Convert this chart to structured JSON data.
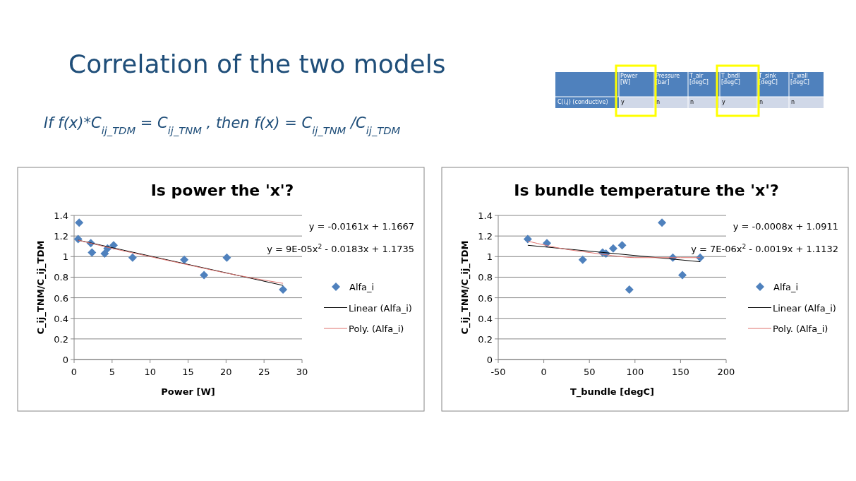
{
  "chart_data": [
    {
      "type": "other",
      "title": "Correlation of the two models",
      "subtitle": "If f(x)*C$_{ij_TDM}$ = C$_{ij_TNM}$ , then f(x) = C$_{ij_TNM}$ /C$_{ij_TDM}$",
      "annotations": [
        "Power [W]",
        "Pressure [bar]",
        "T_air [degC]",
        "T_bndl [degC]",
        "T_sink [degC]",
        "T_wall [degC]",
        "C(i,j) (conductive)",
        "y",
        "n",
        "n",
        "y",
        "n",
        "n"
      ]
    },
    {
      "type": "scatter",
      "title": "Is power the 'x'?",
      "xlabel": "Power [W]",
      "ylabel": "C_ij_TNM/C_ij_TDM",
      "xlim": [
        0,
        30
      ],
      "xticks": [
        0,
        5,
        10,
        15,
        20,
        25,
        30
      ],
      "ylim": [
        0,
        1.4
      ],
      "yticks": [
        0,
        0.2,
        0.4,
        0.6,
        0.8,
        1,
        1.2,
        1.4
      ],
      "grid": "y",
      "legend": "right",
      "annotations": [
        "y = -0.0161x + 1.1667",
        "y = 9E-05x$^{2}$ - 0.0183x + 1.1735"
      ],
      "series": [
        {
          "name": "Alfa_i",
          "type": "scatter",
          "marker": "diamond",
          "color": "#4f81bd",
          "x": [
            0.67,
            0.53,
            2.2,
            2.35,
            4.03,
            4.4,
            5.2,
            7.7,
            14.5,
            17.1,
            20.1,
            27.5
          ],
          "values": [
            1.33,
            1.17,
            1.13,
            1.04,
            1.03,
            1.08,
            1.11,
            0.99,
            0.97,
            0.82,
            0.99,
            0.68
          ]
        },
        {
          "name": "Linear (Alfa_i)",
          "type": "line",
          "marker": "none",
          "color": "#000000",
          "x": [
            0.53,
            27.5
          ],
          "values": [
            1.16,
            0.72
          ]
        },
        {
          "name": "Poly. (Alfa_i)",
          "type": "line",
          "marker": "none",
          "color": "#e0736f",
          "x": [
            0.53,
            5,
            10,
            15,
            20,
            27.5
          ],
          "values": [
            1.16,
            1.08,
            1.0,
            0.92,
            0.84,
            0.74
          ]
        }
      ]
    },
    {
      "type": "scatter",
      "title": "Is bundle temperature the 'x'?",
      "xlabel": "T_bundle [degC]",
      "ylabel": "C_ij_TNM/C_ij_TDM",
      "xlim": [
        -50,
        200
      ],
      "xticks": [
        -50,
        0,
        50,
        100,
        150,
        200
      ],
      "ylim": [
        0,
        1.4
      ],
      "yticks": [
        0,
        0.2,
        0.4,
        0.6,
        0.8,
        1,
        1.2,
        1.4
      ],
      "grid": "y",
      "legend": "right",
      "annotations": [
        "y = -0.0008x + 1.0911",
        "y = 7E-06x$^{2}$ - 0.0019x + 1.1132"
      ],
      "series": [
        {
          "name": "Alfa_i",
          "type": "scatter",
          "marker": "diamond",
          "color": "#4f81bd",
          "x": [
            -17.6,
            3.4,
            42.7,
            64.5,
            68.2,
            76.1,
            85.9,
            93.8,
            129.6,
            141.5,
            152,
            171.5
          ],
          "values": [
            1.17,
            1.13,
            0.97,
            1.04,
            1.03,
            1.08,
            1.11,
            0.68,
            1.33,
            0.99,
            0.82,
            0.99
          ]
        },
        {
          "name": "Linear (Alfa_i)",
          "type": "line",
          "marker": "none",
          "color": "#000000",
          "x": [
            -17.6,
            171.5
          ],
          "values": [
            1.11,
            0.95
          ]
        },
        {
          "name": "Poly. (Alfa_i)",
          "type": "line",
          "marker": "none",
          "color": "#e0736f",
          "x": [
            -17.6,
            25,
            50,
            75,
            100,
            125,
            150,
            171.5
          ],
          "values": [
            1.15,
            1.07,
            1.04,
            1.01,
            0.99,
            0.99,
            0.99,
            0.99
          ]
        }
      ]
    }
  ]
}
